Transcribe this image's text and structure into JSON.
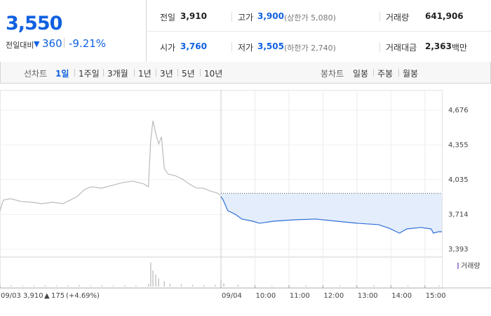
{
  "header": {
    "price": "3,550",
    "change_label": "전일대비",
    "change": "360",
    "change_rate": "-9.21%",
    "stats": [
      [
        {
          "label": "전일",
          "value": "3,910"
        },
        {
          "label": "고가",
          "value": "3,900",
          "note": "(상한가 5,080)"
        },
        {
          "label": "거래량",
          "value": "641,906"
        }
      ],
      [
        {
          "label": "시가",
          "value": "3,760"
        },
        {
          "label": "저가",
          "value": "3,505",
          "note": "(하한가 2,740)"
        },
        {
          "label": "거래대금",
          "value": "2,363",
          "unit": "백만"
        }
      ]
    ]
  },
  "tabs": {
    "line_label": "선차트",
    "line_items": [
      "1일",
      "1주일",
      "3개월",
      "1년",
      "3년",
      "5년",
      "10년"
    ],
    "candle_label": "봉차트",
    "candle_items": [
      "일봉",
      "주봉",
      "월봉"
    ]
  },
  "chart_data": {
    "type": "line",
    "annotation": {
      "price": "3,910",
      "change": "175",
      "rate": "(+4.69%)"
    },
    "xlim": [
      0,
      780
    ],
    "xticks": [
      {
        "value": 0,
        "label": "09/03"
      },
      {
        "value": 390,
        "label": "09/04"
      },
      {
        "value": 450,
        "label": "10:00"
      },
      {
        "value": 510,
        "label": "11:00"
      },
      {
        "value": 570,
        "label": "12:00"
      },
      {
        "value": 630,
        "label": "13:00"
      },
      {
        "value": 690,
        "label": "14:00"
      },
      {
        "value": 750,
        "label": "15:00"
      }
    ],
    "ylim": [
      3328,
      4767
    ],
    "yticks": [
      {
        "value": 4676,
        "label": "4,676"
      },
      {
        "value": 4355,
        "label": "4,355"
      },
      {
        "value": 4035,
        "label": "4,035"
      },
      {
        "value": 3714,
        "label": "3,714"
      },
      {
        "value": 3393,
        "label": "3,393"
      }
    ],
    "reference_value": 3910,
    "series": [
      {
        "color": "#bbbbbb",
        "x": [
          0,
          6,
          19,
          37,
          56,
          74,
          93,
          111,
          124,
          136,
          149,
          161,
          179,
          198,
          217,
          235,
          254,
          262,
          266,
          270,
          275,
          280,
          285,
          290,
          297,
          309,
          322,
          334,
          347,
          359,
          371,
          384,
          389
        ],
        "values": [
          3749,
          3847,
          3860,
          3834,
          3827,
          3814,
          3827,
          3814,
          3847,
          3879,
          3944,
          3970,
          3957,
          3983,
          4009,
          4022,
          3996,
          3970,
          4397,
          4579,
          4462,
          4365,
          4430,
          4138,
          4086,
          4073,
          4041,
          3996,
          3957,
          3957,
          3931,
          3911,
          3892
        ]
      },
      {
        "color": "#2f6fd6",
        "x": [
          390,
          394,
          402,
          415,
          427,
          446,
          458,
          483,
          520,
          557,
          594,
          631,
          668,
          687,
          705,
          718,
          743,
          761,
          765,
          774,
          780
        ],
        "values": [
          3879,
          3847,
          3749,
          3717,
          3672,
          3652,
          3633,
          3652,
          3665,
          3672,
          3652,
          3633,
          3620,
          3587,
          3542,
          3581,
          3594,
          3581,
          3542,
          3555,
          3555
        ]
      }
    ],
    "volume": {
      "name": "거래량",
      "color": "#c4c4c4",
      "ylim": [
        0,
        100
      ],
      "x": [
        0,
        20,
        40,
        60,
        80,
        100,
        120,
        140,
        160,
        180,
        200,
        220,
        240,
        262,
        266,
        270,
        275,
        280,
        290,
        300,
        320,
        340,
        360,
        380,
        390,
        395,
        420,
        450,
        480,
        510,
        540,
        570,
        600,
        630,
        660,
        690,
        720,
        750,
        775
      ],
      "values": [
        5,
        4,
        3,
        3,
        4,
        3,
        4,
        5,
        3,
        4,
        3,
        4,
        4,
        10,
        90,
        60,
        45,
        30,
        20,
        10,
        8,
        6,
        5,
        6,
        25,
        12,
        6,
        4,
        3,
        3,
        4,
        3,
        3,
        3,
        4,
        3,
        4,
        5,
        4
      ]
    }
  }
}
